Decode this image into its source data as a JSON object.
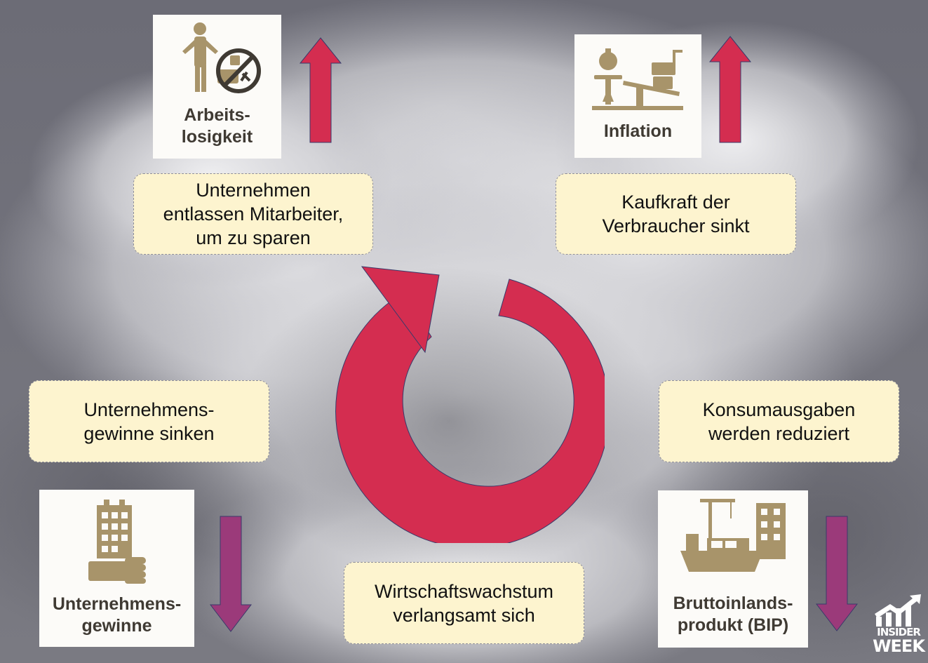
{
  "cards": {
    "unemployment": {
      "label": "Arbeits-\nlosigkeit",
      "icon": "unemployed-person-icon"
    },
    "inflation": {
      "label": "Inflation",
      "icon": "scale-shopping-cart-icon"
    },
    "profits": {
      "label": "Unternehmens-\ngewinne",
      "icon": "building-coins-icon"
    },
    "gdp": {
      "label": "Bruttoinlands-\nprodukt (BIP)",
      "icon": "ship-crane-building-icon"
    }
  },
  "boxes": {
    "layoffs": "Unternehmen\nentlassen Mitarbeiter,\num zu sparen",
    "purchasing_power": "Kaufkraft der\nVerbraucher sinkt",
    "profits_fall": "Unternehmens-\ngewinne sinken",
    "consumption": "Konsumausgaben\nwerden reduziert",
    "growth": "Wirtschaftswachstum\nverlangsamt sich"
  },
  "colors": {
    "arrow_up": "#d42d50",
    "arrow_down": "#9b3a7a",
    "cycle": "#d42d50",
    "box_bg": "#fdf4cf",
    "icon_gold": "#a8946a"
  },
  "logo": {
    "line1": "INSIDER",
    "line2": "WEEK",
    "icon": "chart-growth-icon"
  }
}
